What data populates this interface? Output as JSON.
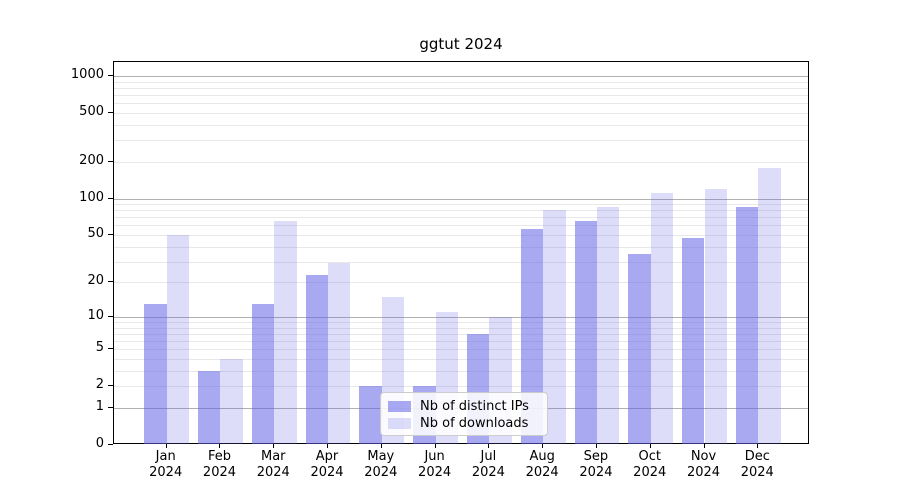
{
  "title": "ggtut 2024",
  "colors": {
    "bar_distinct_ips": "rgba(98,98,231,0.55)",
    "bar_downloads": "rgba(98,98,231,0.22)",
    "grid_major": "#b0b0b0",
    "grid_minor": "#e8e8e8",
    "spine": "#000000",
    "axis_text": "#000000",
    "legend_border": "#cccccc",
    "legend_background": "rgba(255,255,255,0.85)"
  },
  "x_axis": {
    "months": [
      "Jan",
      "Feb",
      "Mar",
      "Apr",
      "May",
      "Jun",
      "Jul",
      "Aug",
      "Sep",
      "Oct",
      "Nov",
      "Dec"
    ],
    "year": "2024"
  },
  "y_axis": {
    "tick_labels": [
      "0",
      "1",
      "2",
      "5",
      "10",
      "20",
      "50",
      "100",
      "200",
      "500",
      "1000"
    ]
  },
  "chart_data": {
    "type": "bar",
    "title": "ggtut 2024",
    "categories": [
      "Jan 2024",
      "Feb 2024",
      "Mar 2024",
      "Apr 2024",
      "May 2024",
      "Jun 2024",
      "Jul 2024",
      "Aug 2024",
      "Sep 2024",
      "Oct 2024",
      "Nov 2024",
      "Dec 2024"
    ],
    "series": [
      {
        "name": "Nb of distinct IPs",
        "values": [
          13,
          3,
          13,
          23,
          2,
          2,
          7,
          56,
          65,
          35,
          47,
          85
        ]
      },
      {
        "name": "Nb of downloads",
        "values": [
          50,
          4,
          65,
          29,
          15,
          11,
          10,
          80,
          85,
          110,
          120,
          178
        ]
      }
    ],
    "yscale": "pseudo-log (log10(1+x))",
    "yticks": [
      0,
      1,
      2,
      5,
      10,
      20,
      50,
      100,
      200,
      500,
      1000
    ],
    "yticks_major_grid": [
      1,
      10,
      100,
      1000
    ],
    "ylim": [
      0,
      1300
    ],
    "grid": "both",
    "legend_position": "inside lower center"
  }
}
